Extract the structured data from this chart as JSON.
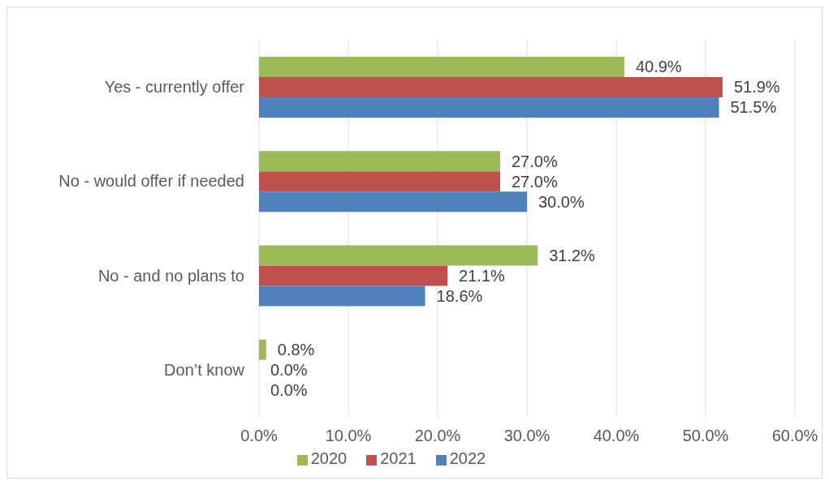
{
  "chart_data": {
    "type": "bar",
    "orientation": "horizontal",
    "categories": [
      "Yes - currently offer",
      "No - would offer if needed",
      "No - and no plans to",
      "Don’t know"
    ],
    "series": [
      {
        "name": "2020",
        "color": "#9bbb59",
        "values": [
          40.9,
          27.0,
          31.2,
          0.8
        ],
        "value_labels": [
          "40.9%",
          "27.0%",
          "31.2%",
          "0.8%"
        ]
      },
      {
        "name": "2021",
        "color": "#c0504d",
        "values": [
          51.9,
          27.0,
          21.1,
          0.0
        ],
        "value_labels": [
          "51.9%",
          "27.0%",
          "21.1%",
          "0.0%"
        ]
      },
      {
        "name": "2022",
        "color": "#4f81bd",
        "values": [
          51.5,
          30.0,
          18.6,
          0.0
        ],
        "value_labels": [
          "51.5%",
          "30.0%",
          "18.6%",
          "0.0%"
        ]
      }
    ],
    "xlim": [
      0,
      60
    ],
    "xticks": [
      {
        "value": 0,
        "label": "0.0%"
      },
      {
        "value": 10,
        "label": "10.0%"
      },
      {
        "value": 20,
        "label": "20.0%"
      },
      {
        "value": 30,
        "label": "30.0%"
      },
      {
        "value": 40,
        "label": "40.0%"
      },
      {
        "value": 50,
        "label": "50.0%"
      },
      {
        "value": 60,
        "label": "60.0%"
      }
    ],
    "grid": "x",
    "legend": "bottom"
  }
}
